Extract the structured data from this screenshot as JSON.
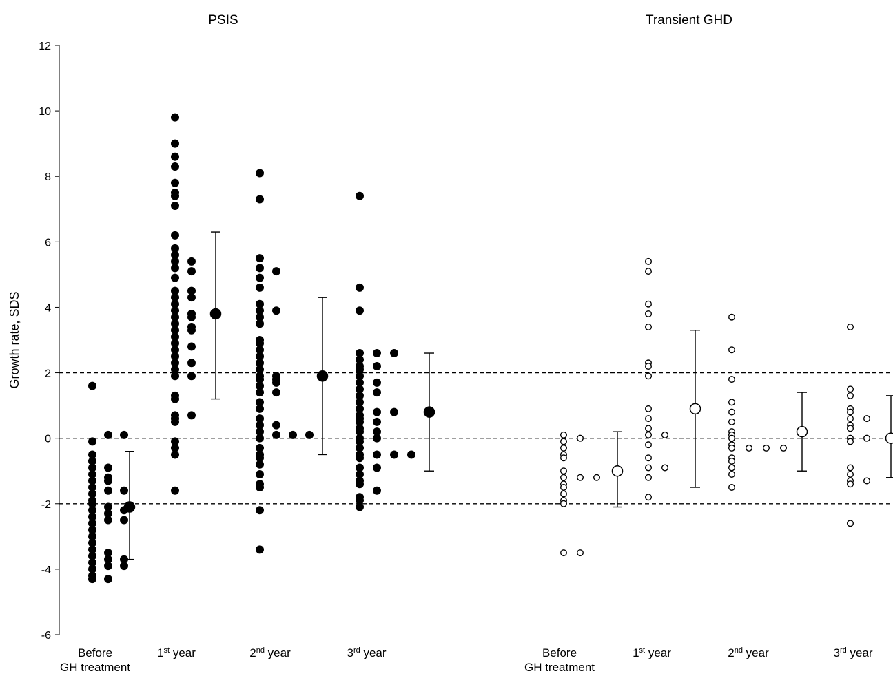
{
  "chart_data": {
    "type": "scatter",
    "ylabel": "Growth rate, SDS",
    "ylim": [
      -6,
      12
    ],
    "yticks": [
      -6,
      -4,
      -2,
      0,
      2,
      4,
      6,
      8,
      10,
      12
    ],
    "reference_lines": [
      -2,
      0,
      2
    ],
    "panels": [
      {
        "title": "PSIS",
        "marker": "filled",
        "groups": [
          {
            "label": {
              "main": "Before",
              "sup": "",
              "rest": "",
              "line2": "GH treatment"
            },
            "mean": -2.1,
            "err_low": -3.7,
            "err_high": -0.4,
            "columns": [
              [
                1.6,
                -0.1,
                -0.5,
                -0.7,
                -0.9,
                -1.1,
                -1.3,
                -1.5,
                -1.7,
                -1.9,
                -2.0,
                -2.2,
                -2.4,
                -2.6,
                -2.8,
                -3.0,
                -3.2,
                -3.4,
                -3.6,
                -3.8,
                -4.0,
                -4.2,
                -4.3
              ],
              [
                0.1,
                -0.9,
                -1.2,
                -1.3,
                -1.6,
                -2.1,
                -2.3,
                -2.5,
                -3.5,
                -3.7,
                -3.9,
                -4.3
              ],
              [
                0.1,
                -1.6,
                -2.2,
                -2.5,
                -3.7,
                -3.9
              ]
            ]
          },
          {
            "label": {
              "main": "1",
              "sup": "st",
              "rest": " year",
              "line2": ""
            },
            "mean": 3.8,
            "err_low": 1.2,
            "err_high": 6.3,
            "columns": [
              [
                9.8,
                9.0,
                8.6,
                8.3,
                7.8,
                7.5,
                7.4,
                7.1,
                6.2,
                5.8,
                5.6,
                5.4,
                5.2,
                4.9,
                4.5,
                4.3,
                4.1,
                3.9,
                3.7,
                3.5,
                3.3,
                3.1,
                2.9,
                2.7,
                2.5,
                2.3,
                2.1,
                1.9,
                1.3,
                1.2,
                0.7,
                0.6,
                0.5,
                -0.1,
                -0.3,
                -0.5,
                -1.6
              ],
              [
                5.4,
                5.1,
                4.5,
                4.3,
                3.8,
                3.7,
                3.4,
                3.3,
                2.8,
                2.3,
                1.9,
                0.7
              ]
            ]
          },
          {
            "label": {
              "main": "2",
              "sup": "nd",
              "rest": " year",
              "line2": ""
            },
            "mean": 1.9,
            "err_low": -0.5,
            "err_high": 4.3,
            "columns": [
              [
                8.1,
                7.3,
                5.5,
                5.2,
                4.9,
                4.6,
                4.1,
                3.9,
                3.7,
                3.5,
                3.0,
                2.9,
                2.7,
                2.5,
                2.3,
                2.1,
                1.9,
                1.8,
                1.6,
                1.4,
                1.1,
                0.9,
                0.6,
                0.4,
                0.2,
                0.0,
                -0.3,
                -0.5,
                -0.6,
                -0.8,
                -1.1,
                -1.4,
                -1.5,
                -2.2,
                -3.4
              ],
              [
                5.1,
                3.9,
                1.9,
                1.8,
                1.7,
                1.4,
                0.4,
                0.1
              ],
              [
                0.1
              ],
              [
                0.1
              ]
            ]
          },
          {
            "label": {
              "main": "3",
              "sup": "rd",
              "rest": " year",
              "line2": ""
            },
            "mean": 0.8,
            "err_low": -1.0,
            "err_high": 2.6,
            "columns": [
              [
                7.4,
                4.6,
                3.9,
                2.6,
                2.4,
                2.2,
                2.1,
                1.9,
                1.7,
                1.5,
                1.3,
                1.1,
                0.9,
                0.7,
                0.6,
                0.5,
                0.3,
                0.2,
                0.0,
                -0.1,
                -0.3,
                -0.5,
                -0.6,
                -0.9,
                -1.1,
                -1.3,
                -1.4,
                -1.8,
                -1.9,
                -2.1
              ],
              [
                2.6,
                2.2,
                1.7,
                1.4,
                0.8,
                0.5,
                0.2,
                0.0,
                -0.5,
                -0.9,
                -1.6
              ],
              [
                2.6,
                0.8,
                -0.5
              ],
              [
                -0.5
              ]
            ]
          }
        ]
      },
      {
        "title": "Transient GHD",
        "marker": "open",
        "groups": [
          {
            "label": {
              "main": "Before",
              "sup": "",
              "rest": "",
              "line2": "GH treatment"
            },
            "mean": -1.0,
            "err_low": -2.1,
            "err_high": 0.2,
            "columns": [
              [
                0.1,
                -0.1,
                -0.3,
                -0.5,
                -0.6,
                -1.0,
                -1.2,
                -1.4,
                -1.5,
                -1.7,
                -1.9,
                -2.0,
                -3.5
              ],
              [
                0.0,
                -1.2,
                -3.5
              ],
              [
                -1.2
              ]
            ]
          },
          {
            "label": {
              "main": "1",
              "sup": "st",
              "rest": " year",
              "line2": ""
            },
            "mean": 0.9,
            "err_low": -1.5,
            "err_high": 3.3,
            "columns": [
              [
                5.4,
                5.1,
                4.1,
                3.8,
                3.4,
                2.3,
                2.2,
                1.9,
                0.9,
                0.6,
                0.3,
                0.1,
                -0.2,
                -0.6,
                -0.9,
                -1.2,
                -1.8
              ],
              [
                0.1,
                -0.9
              ]
            ]
          },
          {
            "label": {
              "main": "2",
              "sup": "nd",
              "rest": " year",
              "line2": ""
            },
            "mean": 0.2,
            "err_low": -1.0,
            "err_high": 1.4,
            "columns": [
              [
                3.7,
                2.7,
                1.8,
                1.1,
                0.8,
                0.5,
                0.2,
                0.1,
                0.0,
                -0.2,
                -0.3,
                -0.6,
                -0.7,
                -0.9,
                -1.1,
                -1.5
              ],
              [
                -0.3
              ],
              [
                -0.3
              ],
              [
                -0.3
              ]
            ]
          },
          {
            "label": {
              "main": "3",
              "sup": "rd",
              "rest": " year",
              "line2": ""
            },
            "mean": 0.0,
            "err_low": -1.2,
            "err_high": 1.3,
            "columns": [
              [
                3.4,
                1.5,
                1.3,
                0.9,
                0.8,
                0.6,
                0.4,
                0.3,
                0.0,
                -0.1,
                -0.9,
                -1.1,
                -1.3,
                -1.4,
                -2.6
              ],
              [
                0.6,
                0.0,
                -1.3
              ]
            ]
          }
        ]
      }
    ]
  }
}
